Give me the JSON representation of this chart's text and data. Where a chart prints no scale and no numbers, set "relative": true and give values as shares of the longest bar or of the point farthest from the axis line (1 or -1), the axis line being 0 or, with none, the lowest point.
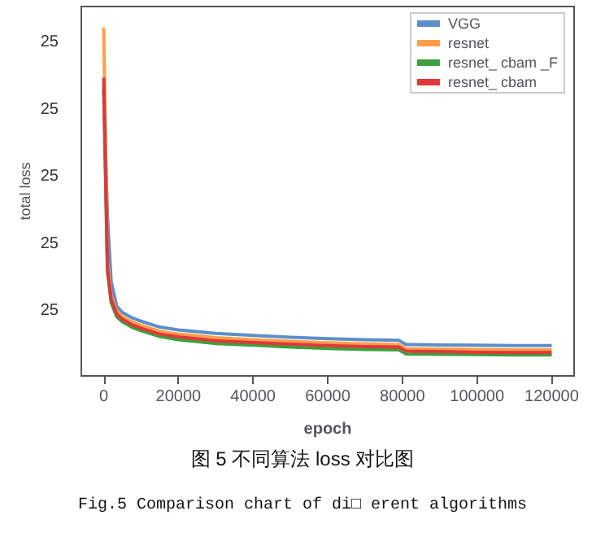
{
  "chart_data": {
    "type": "line",
    "relative": true,
    "xlabel": "epoch",
    "ylabel": "total loss",
    "xlim": [
      -6000,
      126000
    ],
    "xticks": [
      0,
      20000,
      40000,
      60000,
      80000,
      100000,
      120000
    ],
    "x": [
      0,
      1000,
      2000,
      3500,
      5000,
      7500,
      10000,
      15000,
      20000,
      30000,
      40000,
      50000,
      60000,
      70000,
      79000,
      81000,
      90000,
      100000,
      110000,
      120000
    ],
    "series": [
      {
        "name": "VGG",
        "color": "#5b8fc9",
        "values": [
          0.82,
          0.46,
          0.27,
          0.2,
          0.182,
          0.167,
          0.157,
          0.14,
          0.132,
          0.122,
          0.116,
          0.111,
          0.107,
          0.104,
          0.102,
          0.09,
          0.089,
          0.088,
          0.087,
          0.087
        ]
      },
      {
        "name": "resnet",
        "color": "#ff9e4a",
        "values": [
          1.0,
          0.33,
          0.23,
          0.185,
          0.17,
          0.155,
          0.145,
          0.128,
          0.12,
          0.11,
          0.104,
          0.099,
          0.095,
          0.092,
          0.09,
          0.078,
          0.077,
          0.076,
          0.075,
          0.075
        ]
      },
      {
        "name": "resnet_ cbam _F",
        "color": "#3ca03c",
        "values": [
          0.83,
          0.3,
          0.21,
          0.17,
          0.155,
          0.14,
          0.13,
          0.113,
          0.104,
          0.093,
          0.088,
          0.083,
          0.079,
          0.076,
          0.075,
          0.063,
          0.062,
          0.061,
          0.06,
          0.06
        ]
      },
      {
        "name": "resnet_ cbam",
        "color": "#e0383a",
        "values": [
          0.856,
          0.31,
          0.22,
          0.178,
          0.162,
          0.147,
          0.137,
          0.12,
          0.112,
          0.101,
          0.096,
          0.091,
          0.087,
          0.084,
          0.083,
          0.071,
          0.07,
          0.068,
          0.067,
          0.067
        ]
      }
    ],
    "legend": "top right",
    "grid": false,
    "annotations": [
      "25",
      "25",
      "25",
      "25",
      "25",
      "图 5 不同算法 loss 对比图",
      "Fig.5 Comparison chart of di□ erent algorithms"
    ]
  }
}
